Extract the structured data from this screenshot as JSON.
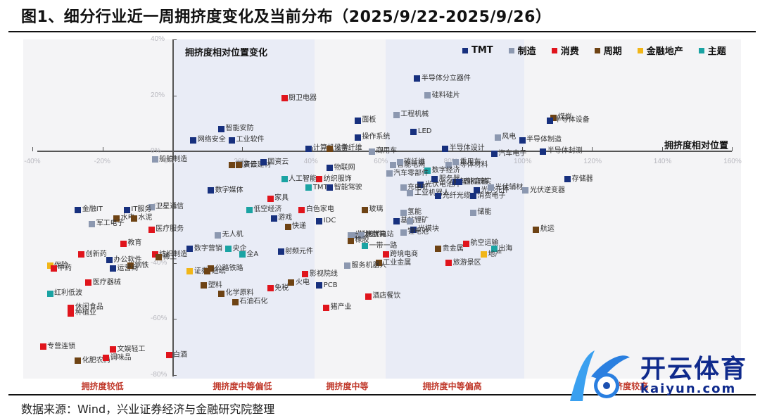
{
  "header": {
    "title": "图1、细分行业近一周拥挤度变化及当前分布（2025/9/22-2025/9/26）"
  },
  "footer": {
    "source": "数据来源：Wind，兴业证券经济与金融研究院整理"
  },
  "watermark": {
    "brand": "开云体育",
    "url": "kaiyun.com"
  },
  "colors": {
    "TMT": "#17307e",
    "制造": "#8c98b0",
    "消费": "#e0141c",
    "周期": "#6e4314",
    "金融地产": "#f1b618",
    "主题": "#1aa3a3",
    "zone_label": "#c0392b",
    "band": "#e9ecf6",
    "plot_bg": "#f4f4f6"
  },
  "chart_data": {
    "type": "scatter",
    "title": "细分行业近一周拥挤度变化及当前分布（2025/9/22-2025/9/26）",
    "xlabel": "拥挤度相对位置",
    "ylabel": "拥挤度相对位置变化",
    "xlim": [
      -40,
      160
    ],
    "ylim": [
      -80,
      40
    ],
    "x_ticks": [
      "-40%",
      "-20%",
      "0%",
      "20%",
      "40%",
      "60%",
      "80%",
      "100%",
      "120%",
      "140%",
      "160%"
    ],
    "y_ticks": [
      "40%",
      "20%",
      "0%",
      "-20%",
      "-40%",
      "-60%",
      "-80%"
    ],
    "legend": [
      "TMT",
      "制造",
      "消费",
      "周期",
      "金融地产",
      "主题"
    ],
    "legend_position": "top-right",
    "grid": false,
    "zones": [
      {
        "label": "拥挤度较低",
        "x_range": [
          -40,
          0
        ]
      },
      {
        "label": "拥挤度中等偏低",
        "x_range": [
          0,
          40
        ]
      },
      {
        "label": "拥挤度中等",
        "x_range": [
          40,
          60
        ]
      },
      {
        "label": "拥挤度中等偏高",
        "x_range": [
          60,
          100
        ]
      },
      {
        "label": "拥挤度较高",
        "x_range": [
          100,
          160
        ]
      }
    ],
    "points": [
      {
        "name": "半导体分立器件",
        "group": "TMT",
        "x": 70,
        "y": 26
      },
      {
        "name": "硅料硅片",
        "group": "制造",
        "x": 73,
        "y": 20
      },
      {
        "name": "厨卫电器",
        "group": "消费",
        "x": 32,
        "y": 19
      },
      {
        "name": "工程机械",
        "group": "制造",
        "x": 64,
        "y": 13
      },
      {
        "name": "面板",
        "group": "TMT",
        "x": 53,
        "y": 11
      },
      {
        "name": "煤炭",
        "group": "周期",
        "x": 109,
        "y": 12
      },
      {
        "name": "半导体设备",
        "group": "TMT",
        "x": 108,
        "y": 11
      },
      {
        "name": "网络安全",
        "group": "TMT",
        "x": 6,
        "y": 4
      },
      {
        "name": "智能安防",
        "group": "TMT",
        "x": 14,
        "y": 8
      },
      {
        "name": "工业软件",
        "group": "TMT",
        "x": 17,
        "y": 4
      },
      {
        "name": "操作系统",
        "group": "TMT",
        "x": 53,
        "y": 5
      },
      {
        "name": "LED",
        "group": "TMT",
        "x": 69,
        "y": 7
      },
      {
        "name": "风电",
        "group": "制造",
        "x": 93,
        "y": 5
      },
      {
        "name": "半导体制造",
        "group": "TMT",
        "x": 100,
        "y": 4
      },
      {
        "name": "半导体设计",
        "group": "TMT",
        "x": 78,
        "y": 1
      },
      {
        "name": "计算机设备",
        "group": "TMT",
        "x": 39,
        "y": 1
      },
      {
        "name": "化学纤维",
        "group": "周期",
        "x": 45,
        "y": 1
      },
      {
        "name": "商用车",
        "group": "制造",
        "x": 57,
        "y": 0
      },
      {
        "name": "汽车电子",
        "group": "TMT",
        "x": 92,
        "y": -1
      },
      {
        "name": "半导体封测",
        "group": "TMT",
        "x": 106,
        "y": 0
      },
      {
        "name": "船舶制造",
        "group": "制造",
        "x": -5,
        "y": -3
      },
      {
        "name": "国资云",
        "group": "周期",
        "x": 17,
        "y": -5
      },
      {
        "name": "物联网",
        "group": "TMT",
        "x": 45,
        "y": -6
      },
      {
        "name": "智能电网",
        "group": "制造",
        "x": 63,
        "y": -5
      },
      {
        "name": "碳纤维",
        "group": "制造",
        "x": 65,
        "y": -4
      },
      {
        "name": "半导体材料",
        "group": "制造",
        "x": 79,
        "y": -5
      },
      {
        "name": "乘用车",
        "group": "制造",
        "x": 81,
        "y": -4
      },
      {
        "name": "装修建材",
        "group": "周期",
        "x": 19,
        "y": -5
      },
      {
        "name": "国资云",
        "group": "TMT",
        "x": 26,
        "y": -4
      },
      {
        "name": "数字经济",
        "group": "主题",
        "x": 73,
        "y": -7
      },
      {
        "name": "汽车零部件",
        "group": "制造",
        "x": 62,
        "y": -8
      },
      {
        "name": "纺织服饰",
        "group": "消费",
        "x": 42,
        "y": -10
      },
      {
        "name": "智能音箱",
        "group": "TMT",
        "x": 81,
        "y": -11
      },
      {
        "name": "人工智能",
        "group": "主题",
        "x": 32,
        "y": -10
      },
      {
        "name": "数字媒体",
        "group": "TMT",
        "x": 11,
        "y": -14
      },
      {
        "name": "TMT",
        "group": "主题",
        "x": 39,
        "y": -13
      },
      {
        "name": "智能驾驶",
        "group": "TMT",
        "x": 45,
        "y": -13
      },
      {
        "name": "光伏电池片",
        "group": "TMT",
        "x": 71,
        "y": -12
      },
      {
        "name": "服务器",
        "group": "TMT",
        "x": 75,
        "y": -10
      },
      {
        "name": "充电桩",
        "group": "制造",
        "x": 66,
        "y": -13
      },
      {
        "name": "虚拟现实",
        "group": "TMT",
        "x": 82,
        "y": -11
      },
      {
        "name": "光学元件",
        "group": "TMT",
        "x": 87,
        "y": -14
      },
      {
        "name": "光伏辅材",
        "group": "制造",
        "x": 91,
        "y": -13
      },
      {
        "name": "存储器",
        "group": "TMT",
        "x": 113,
        "y": -10
      },
      {
        "name": "光伏逆变器",
        "group": "制造",
        "x": 101,
        "y": -14
      },
      {
        "name": "工业机器人",
        "group": "制造",
        "x": 68,
        "y": -15
      },
      {
        "name": "光纤光缆",
        "group": "TMT",
        "x": 76,
        "y": -16
      },
      {
        "name": "消费电子",
        "group": "TMT",
        "x": 86,
        "y": -16
      },
      {
        "name": "低空经济",
        "group": "主题",
        "x": 22,
        "y": -21
      },
      {
        "name": "家具",
        "group": "消费",
        "x": 28,
        "y": -17
      },
      {
        "name": "白色家电",
        "group": "消费",
        "x": 37,
        "y": -21
      },
      {
        "name": "玻璃",
        "group": "周期",
        "x": 55,
        "y": -21
      },
      {
        "name": "氢能",
        "group": "制造",
        "x": 66,
        "y": -22
      },
      {
        "name": "储能",
        "group": "制造",
        "x": 86,
        "y": -22
      },
      {
        "name": "游戏",
        "group": "TMT",
        "x": 29,
        "y": -24
      },
      {
        "name": "快递",
        "group": "周期",
        "x": 33,
        "y": -27
      },
      {
        "name": "IDC",
        "group": "TMT",
        "x": 42,
        "y": -25
      },
      {
        "name": "基站",
        "group": "TMT",
        "x": 64,
        "y": -25
      },
      {
        "name": "锂矿",
        "group": "制造",
        "x": 68,
        "y": -25
      },
      {
        "name": "光模块",
        "group": "TMT",
        "x": 69,
        "y": -28
      },
      {
        "name": "锂电池",
        "group": "制造",
        "x": 66,
        "y": -29
      },
      {
        "name": "无人机",
        "group": "制造",
        "x": 13,
        "y": -30
      },
      {
        "name": "航运",
        "group": "周期",
        "x": 104,
        "y": -28
      },
      {
        "name": "机床工具",
        "group": "制造",
        "x": 52,
        "y": -30
      },
      {
        "name": "光伏组件",
        "group": "制造",
        "x": 51,
        "y": -30
      },
      {
        "name": "光伏电站",
        "group": "制造",
        "x": 54,
        "y": -30
      },
      {
        "name": "航空运输",
        "group": "消费",
        "x": 84,
        "y": -33
      },
      {
        "name": "射频元件",
        "group": "TMT",
        "x": 31,
        "y": -36
      },
      {
        "name": "数字营销",
        "group": "TMT",
        "x": 5,
        "y": -35
      },
      {
        "name": "央企",
        "group": "主题",
        "x": 16,
        "y": -35
      },
      {
        "name": "全A",
        "group": "主题",
        "x": 20,
        "y": -37
      },
      {
        "name": "一带一路",
        "group": "主题",
        "x": 55,
        "y": -34
      },
      {
        "name": "橡胶",
        "group": "周期",
        "x": 51,
        "y": -32
      },
      {
        "name": "跨境电商",
        "group": "消费",
        "x": 61,
        "y": -37
      },
      {
        "name": "贵金属",
        "group": "周期",
        "x": 76,
        "y": -35
      },
      {
        "name": "出海",
        "group": "主题",
        "x": 92,
        "y": -35
      },
      {
        "name": "地产",
        "group": "金融地产",
        "x": 89,
        "y": -37
      },
      {
        "name": "旅游景区",
        "group": "消费",
        "x": 79,
        "y": -40
      },
      {
        "name": "工业金属",
        "group": "周期",
        "x": 59,
        "y": -40
      },
      {
        "name": "服务机器人",
        "group": "制造",
        "x": 50,
        "y": -41
      },
      {
        "name": "证券",
        "group": "金融地产",
        "x": 5,
        "y": -43
      },
      {
        "name": "公路铁路",
        "group": "周期",
        "x": 11,
        "y": -42
      },
      {
        "name": "造纸",
        "group": "周期",
        "x": 10,
        "y": -43
      },
      {
        "name": "影视院线",
        "group": "消费",
        "x": 38,
        "y": -44
      },
      {
        "name": "火电",
        "group": "周期",
        "x": 34,
        "y": -47
      },
      {
        "name": "免税",
        "group": "消费",
        "x": 28,
        "y": -49
      },
      {
        "name": "塑料",
        "group": "周期",
        "x": 9,
        "y": -48
      },
      {
        "name": "化学原料",
        "group": "周期",
        "x": 14,
        "y": -51
      },
      {
        "name": "石油石化",
        "group": "周期",
        "x": 18,
        "y": -54
      },
      {
        "name": "PCB",
        "group": "TMT",
        "x": 42,
        "y": -48
      },
      {
        "name": "酒店餐饮",
        "group": "消费",
        "x": 56,
        "y": -52
      },
      {
        "name": "猪产业",
        "group": "消费",
        "x": 44,
        "y": -56
      },
      {
        "name": "卫星通信",
        "group": "制造",
        "x": -6,
        "y": -20
      },
      {
        "name": "IT服务",
        "group": "TMT",
        "x": -13,
        "y": -21
      },
      {
        "name": "金融IT",
        "group": "TMT",
        "x": -27,
        "y": -21
      },
      {
        "name": "水电",
        "group": "周期",
        "x": -16,
        "y": -24
      },
      {
        "name": "水泥",
        "group": "周期",
        "x": -11,
        "y": -24
      },
      {
        "name": "军工电子",
        "group": "制造",
        "x": -23,
        "y": -26
      },
      {
        "name": "医疗服务",
        "group": "消费",
        "x": -6,
        "y": -28
      },
      {
        "name": "教育",
        "group": "消费",
        "x": -14,
        "y": -33
      },
      {
        "name": "纺织制造",
        "group": "消费",
        "x": -5,
        "y": -37
      },
      {
        "name": "稀土",
        "group": "周期",
        "x": -4,
        "y": -38
      },
      {
        "name": "创新药",
        "group": "消费",
        "x": -26,
        "y": -37
      },
      {
        "name": "钢铁",
        "group": "周期",
        "x": -12,
        "y": -41
      },
      {
        "name": "保险",
        "group": "金融地产",
        "x": -35,
        "y": -41
      },
      {
        "name": "中药",
        "group": "消费",
        "x": -34,
        "y": -42
      },
      {
        "name": "办公软件",
        "group": "TMT",
        "x": -18,
        "y": -39
      },
      {
        "name": "运营商",
        "group": "TMT",
        "x": -17,
        "y": -42
      },
      {
        "name": "医疗器械",
        "group": "消费",
        "x": -24,
        "y": -47
      },
      {
        "name": "红利低波",
        "group": "主题",
        "x": -35,
        "y": -51
      },
      {
        "name": "休闲食品",
        "group": "消费",
        "x": -29,
        "y": -56
      },
      {
        "name": "种植业",
        "group": "消费",
        "x": -29,
        "y": -58
      },
      {
        "name": "专营连锁",
        "group": "消费",
        "x": -37,
        "y": -70
      },
      {
        "name": "化肥农药",
        "group": "周期",
        "x": -27,
        "y": -75
      },
      {
        "name": "文娱轻工",
        "group": "消费",
        "x": -17,
        "y": -71
      },
      {
        "name": "调味品",
        "group": "消费",
        "x": -19,
        "y": -74
      },
      {
        "name": "白酒",
        "group": "消费",
        "x": -1,
        "y": -73
      }
    ]
  }
}
